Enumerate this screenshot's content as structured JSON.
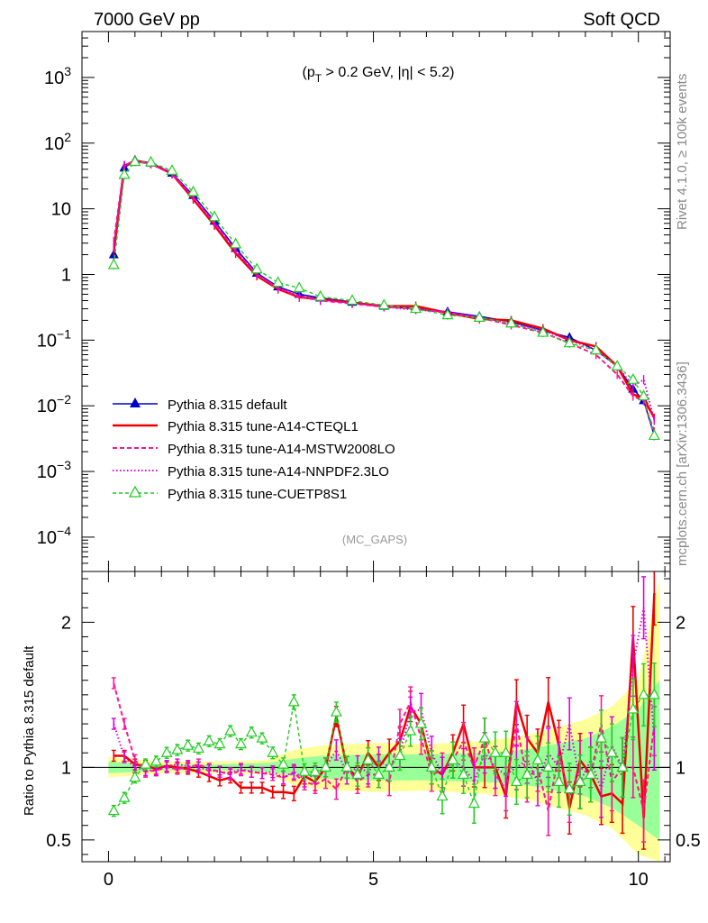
{
  "header": {
    "left": "7000 GeV pp",
    "right": "Soft QCD"
  },
  "annotation": "(p_T > 0.2 GeV, |η| < 5.2)",
  "watermark": "(MC_GAPS)",
  "side_text": {
    "rivet": "Rivet 4.1.0, ≥ 100k events",
    "mcplots": "mcplots.cern.ch [arXiv:1306.3436]"
  },
  "legend": [
    "Pythia 8.315 default",
    "Pythia 8.315 tune-A14-CTEQL1",
    "Pythia 8.315 tune-A14-MSTW2008LO",
    "Pythia 8.315 tune-A14-NNPDF2.3LO",
    "Pythia 8.315 tune-CUETP8S1"
  ],
  "colors": {
    "default": "#0000cc",
    "cteql1": "#ee0000",
    "mstw": "#ff1493",
    "nnpdf": "#e000e0",
    "cuetp8s1": "#22cc22",
    "band_yellow": "#ffff99",
    "band_green": "#99ff99"
  },
  "chart_data": {
    "type": "line",
    "xlim": [
      -0.5,
      10.6
    ],
    "main": {
      "yscale": "log",
      "ylim": [
        3e-05,
        5000
      ],
      "y_ticks": [
        {
          "v": 1000,
          "label": "10^3"
        },
        {
          "v": 100,
          "label": "10^2"
        },
        {
          "v": 10,
          "label": "10"
        },
        {
          "v": 1,
          "label": "1"
        },
        {
          "v": 0.1,
          "label": "10^-1"
        },
        {
          "v": 0.01,
          "label": "10^-2"
        },
        {
          "v": 0.001,
          "label": "10^-3"
        },
        {
          "v": 0.0001,
          "label": "10^-4"
        }
      ],
      "series": [
        {
          "name": "Pythia 8.315 default",
          "style": "blue-triangle",
          "x": [
            0.1,
            0.3,
            0.5,
            0.8,
            1.2,
            1.6,
            2.0,
            2.4,
            2.8,
            3.2,
            3.6,
            4.0,
            4.6,
            5.2,
            5.8,
            6.4,
            7.0,
            7.6,
            8.2,
            8.7,
            9.2,
            9.6,
            9.9,
            10.1,
            10.3
          ],
          "y": [
            2.0,
            42,
            55,
            50,
            35,
            16,
            6.5,
            2.5,
            1.05,
            0.65,
            0.5,
            0.44,
            0.38,
            0.33,
            0.3,
            0.27,
            0.23,
            0.19,
            0.14,
            0.11,
            0.07,
            0.04,
            0.018,
            0.012,
            0.0035
          ]
        },
        {
          "name": "Pythia 8.315 tune-A14-CTEQL1",
          "style": "red-solid",
          "x": [
            0.1,
            0.3,
            0.5,
            0.8,
            1.2,
            1.6,
            2.0,
            2.4,
            2.8,
            3.2,
            3.6,
            4.0,
            4.6,
            5.2,
            5.8,
            6.4,
            7.0,
            7.6,
            8.2,
            8.7,
            9.2,
            9.6,
            9.9,
            10.1,
            10.3
          ],
          "y": [
            2.2,
            45,
            54,
            49,
            34,
            14,
            5.6,
            2.1,
            0.95,
            0.6,
            0.45,
            0.42,
            0.37,
            0.33,
            0.33,
            0.26,
            0.21,
            0.2,
            0.15,
            0.1,
            0.08,
            0.04,
            0.015,
            0.013,
            0.0065
          ]
        },
        {
          "name": "Pythia 8.315 tune-A14-MSTW2008LO",
          "style": "pink-dashed",
          "x": [
            0.1,
            0.3,
            0.5,
            0.8,
            1.2,
            1.6,
            2.0,
            2.4,
            2.8,
            3.2,
            3.6,
            4.0,
            4.6,
            5.2,
            5.8,
            6.4,
            7.0,
            7.6,
            8.2,
            8.7,
            9.2,
            9.6,
            9.9,
            10.1,
            10.3
          ],
          "y": [
            3.2,
            46,
            53,
            48,
            34,
            15,
            6.0,
            2.3,
            1.0,
            0.62,
            0.46,
            0.4,
            0.36,
            0.32,
            0.3,
            0.26,
            0.22,
            0.17,
            0.13,
            0.09,
            0.06,
            0.03,
            0.014,
            0.012,
            0.004
          ]
        },
        {
          "name": "Pythia 8.315 tune-A14-NNPDF2.3LO",
          "style": "magenta-dotted",
          "x": [
            0.1,
            0.3,
            0.5,
            0.8,
            1.2,
            1.6,
            2.0,
            2.4,
            2.8,
            3.2,
            3.6,
            4.0,
            4.6,
            5.2,
            5.8,
            6.4,
            7.0,
            7.6,
            8.2,
            8.7,
            9.2,
            9.6,
            9.9,
            10.1,
            10.3
          ],
          "y": [
            2.6,
            45,
            54,
            49,
            35,
            15,
            6.2,
            2.3,
            1.0,
            0.63,
            0.48,
            0.41,
            0.37,
            0.32,
            0.29,
            0.27,
            0.22,
            0.18,
            0.14,
            0.1,
            0.07,
            0.04,
            0.02,
            0.025,
            0.006
          ]
        },
        {
          "name": "Pythia 8.315 tune-CUETP8S1",
          "style": "green-dashed-open-triangle",
          "x": [
            0.1,
            0.3,
            0.5,
            0.8,
            1.2,
            1.6,
            2.0,
            2.4,
            2.8,
            3.2,
            3.6,
            4.0,
            4.6,
            5.2,
            5.8,
            6.4,
            7.0,
            7.6,
            8.2,
            8.7,
            9.2,
            9.6,
            9.9,
            10.1,
            10.3
          ],
          "y": [
            1.4,
            33,
            52,
            51,
            38,
            18,
            7.5,
            2.9,
            1.2,
            0.75,
            0.62,
            0.46,
            0.4,
            0.34,
            0.3,
            0.24,
            0.22,
            0.18,
            0.13,
            0.09,
            0.07,
            0.04,
            0.025,
            0.014,
            0.0035
          ]
        }
      ]
    },
    "ratio": {
      "ylabel": "Ratio to Pythia 8.315 default",
      "ylim": [
        0.35,
        2.35
      ],
      "y_ticks": [
        0.5,
        1,
        2
      ],
      "x_ticks": [
        0,
        5,
        10
      ],
      "band_yellow": {
        "x": [
          0,
          1,
          2,
          3,
          3.5,
          4,
          5,
          6,
          7,
          7.5,
          8,
          9,
          9.5,
          10,
          10.4
        ],
        "lo": [
          0.93,
          0.96,
          0.96,
          0.95,
          0.88,
          0.85,
          0.83,
          0.84,
          0.82,
          0.8,
          0.77,
          0.67,
          0.58,
          0.4,
          0.35
        ],
        "hi": [
          1.07,
          1.04,
          1.04,
          1.05,
          1.12,
          1.15,
          1.17,
          1.16,
          1.18,
          1.2,
          1.23,
          1.33,
          1.42,
          1.6,
          2.3
        ]
      },
      "band_green": {
        "x": [
          0,
          1,
          2,
          3,
          3.5,
          4,
          5,
          6,
          7,
          7.5,
          8,
          9,
          9.5,
          10,
          10.4
        ],
        "lo": [
          0.96,
          0.98,
          0.98,
          0.97,
          0.94,
          0.92,
          0.91,
          0.91,
          0.9,
          0.89,
          0.87,
          0.8,
          0.72,
          0.6,
          0.5
        ],
        "hi": [
          1.04,
          1.02,
          1.02,
          1.03,
          1.06,
          1.08,
          1.09,
          1.09,
          1.1,
          1.11,
          1.13,
          1.2,
          1.28,
          1.4,
          1.6
        ]
      },
      "series": [
        {
          "name": "Pythia 8.315 tune-A14-CTEQL1",
          "x": [
            0.1,
            0.3,
            0.5,
            0.7,
            0.9,
            1.1,
            1.3,
            1.5,
            1.7,
            1.9,
            2.1,
            2.3,
            2.5,
            2.7,
            2.9,
            3.1,
            3.3,
            3.5,
            3.7,
            3.9,
            4.1,
            4.3,
            4.5,
            4.7,
            4.9,
            5.1,
            5.3,
            5.5,
            5.7,
            5.9,
            6.1,
            6.3,
            6.5,
            6.7,
            6.9,
            7.1,
            7.3,
            7.5,
            7.7,
            7.9,
            8.1,
            8.3,
            8.5,
            8.7,
            8.9,
            9.1,
            9.3,
            9.5,
            9.7,
            9.9,
            10.1,
            10.3
          ],
          "y": [
            1.08,
            1.08,
            1.02,
            1.01,
            0.99,
            1.01,
            1.0,
            0.99,
            0.97,
            0.94,
            0.91,
            0.93,
            0.86,
            0.86,
            0.86,
            0.83,
            0.83,
            0.82,
            0.94,
            0.9,
            1.0,
            1.35,
            1.0,
            0.93,
            1.1,
            1.0,
            1.1,
            1.18,
            1.42,
            1.3,
            1.0,
            0.95,
            1.1,
            1.3,
            1.0,
            1.0,
            1.0,
            0.8,
            1.45,
            1.2,
            1.1,
            1.45,
            1.15,
            0.72,
            1.05,
            0.95,
            0.8,
            0.82,
            0.75,
            1.9,
            0.65,
            2.2
          ]
        },
        {
          "name": "Pythia 8.315 tune-A14-MSTW2008LO",
          "x": [
            0.1,
            0.3,
            0.5,
            0.7,
            0.9,
            1.1,
            1.3,
            1.5,
            1.7,
            1.9,
            2.1,
            2.3,
            2.5,
            2.7,
            2.9,
            3.1,
            3.3,
            3.5,
            3.7,
            3.9,
            4.1,
            4.3,
            4.5,
            4.7,
            4.9,
            5.1,
            5.3,
            5.5,
            5.7,
            5.9,
            6.1,
            6.3,
            6.5,
            6.7,
            6.9,
            7.1,
            7.3,
            7.5,
            7.7,
            7.9,
            8.1,
            8.3,
            8.5,
            8.7,
            8.9,
            9.1,
            9.3,
            9.5,
            9.7,
            9.9,
            10.1,
            10.3
          ],
          "y": [
            1.58,
            1.3,
            1.05,
            0.97,
            0.98,
            1.0,
            0.99,
            1.0,
            1.02,
            0.99,
            0.97,
            0.95,
            0.98,
            0.97,
            0.96,
            0.95,
            0.93,
            0.96,
            0.9,
            0.88,
            0.92,
            0.85,
            1.0,
            0.9,
            0.95,
            0.95,
            0.9,
            1.3,
            1.45,
            1.2,
            0.95,
            0.98,
            1.05,
            1.18,
            1.0,
            1.2,
            0.95,
            0.85,
            1.3,
            0.92,
            1.0,
            0.7,
            1.1,
            0.8,
            1.0,
            0.95,
            1.3,
            0.9,
            1.0,
            1.0,
            0.7,
            1.3
          ]
        },
        {
          "name": "Pythia 8.315 tune-A14-NNPDF2.3LO",
          "x": [
            0.1,
            0.3,
            0.5,
            0.7,
            0.9,
            1.1,
            1.3,
            1.5,
            1.7,
            1.9,
            2.1,
            2.3,
            2.5,
            2.7,
            2.9,
            3.1,
            3.3,
            3.5,
            3.7,
            3.9,
            4.1,
            4.3,
            4.5,
            4.7,
            4.9,
            5.1,
            5.3,
            5.5,
            5.7,
            5.9,
            6.1,
            6.3,
            6.5,
            6.7,
            6.9,
            7.1,
            7.3,
            7.5,
            7.7,
            7.9,
            8.1,
            8.3,
            8.5,
            8.7,
            8.9,
            9.1,
            9.3,
            9.5,
            9.7,
            9.9,
            10.1,
            10.3
          ],
          "y": [
            1.3,
            1.07,
            1.0,
            0.98,
            0.98,
            1.01,
            1.02,
            1.01,
            1.0,
            0.98,
            0.97,
            0.96,
            0.99,
            0.97,
            0.96,
            0.97,
            0.93,
            0.97,
            0.92,
            0.95,
            1.0,
            1.12,
            0.96,
            1.0,
            0.97,
            1.05,
            1.0,
            1.1,
            1.38,
            1.4,
            1.1,
            0.95,
            1.05,
            1.0,
            0.9,
            1.1,
            1.0,
            0.95,
            1.0,
            1.05,
            0.9,
            1.1,
            1.0,
            1.3,
            0.9,
            1.05,
            0.85,
            1.15,
            1.0,
            1.7,
            2.1,
            1.2
          ]
        },
        {
          "name": "Pythia 8.315 tune-CUETP8S1",
          "x": [
            0.1,
            0.3,
            0.5,
            0.7,
            0.9,
            1.1,
            1.3,
            1.5,
            1.7,
            1.9,
            2.1,
            2.3,
            2.5,
            2.7,
            2.9,
            3.1,
            3.3,
            3.5,
            3.7,
            3.9,
            4.1,
            4.3,
            4.5,
            4.7,
            4.9,
            5.1,
            5.3,
            5.5,
            5.7,
            5.9,
            6.1,
            6.3,
            6.5,
            6.7,
            6.9,
            7.1,
            7.3,
            7.5,
            7.7,
            7.9,
            8.1,
            8.3,
            8.5,
            8.7,
            8.9,
            9.1,
            9.3,
            9.5,
            9.7,
            9.9,
            10.1,
            10.3
          ],
          "y": [
            0.7,
            0.79,
            0.93,
            1.02,
            1.04,
            1.1,
            1.12,
            1.15,
            1.13,
            1.18,
            1.16,
            1.25,
            1.16,
            1.24,
            1.2,
            1.1,
            1.02,
            1.45,
            0.97,
            0.97,
            1.0,
            1.38,
            1.0,
            0.95,
            1.05,
            0.95,
            1.0,
            1.08,
            1.25,
            1.3,
            1.0,
            0.8,
            1.05,
            0.95,
            0.75,
            1.2,
            1.1,
            1.1,
            0.9,
            0.95,
            1.05,
            1.0,
            0.9,
            0.85,
            0.9,
            0.95,
            1.2,
            1.1,
            1.0,
            1.4,
            1.5,
            1.5
          ]
        }
      ]
    }
  }
}
